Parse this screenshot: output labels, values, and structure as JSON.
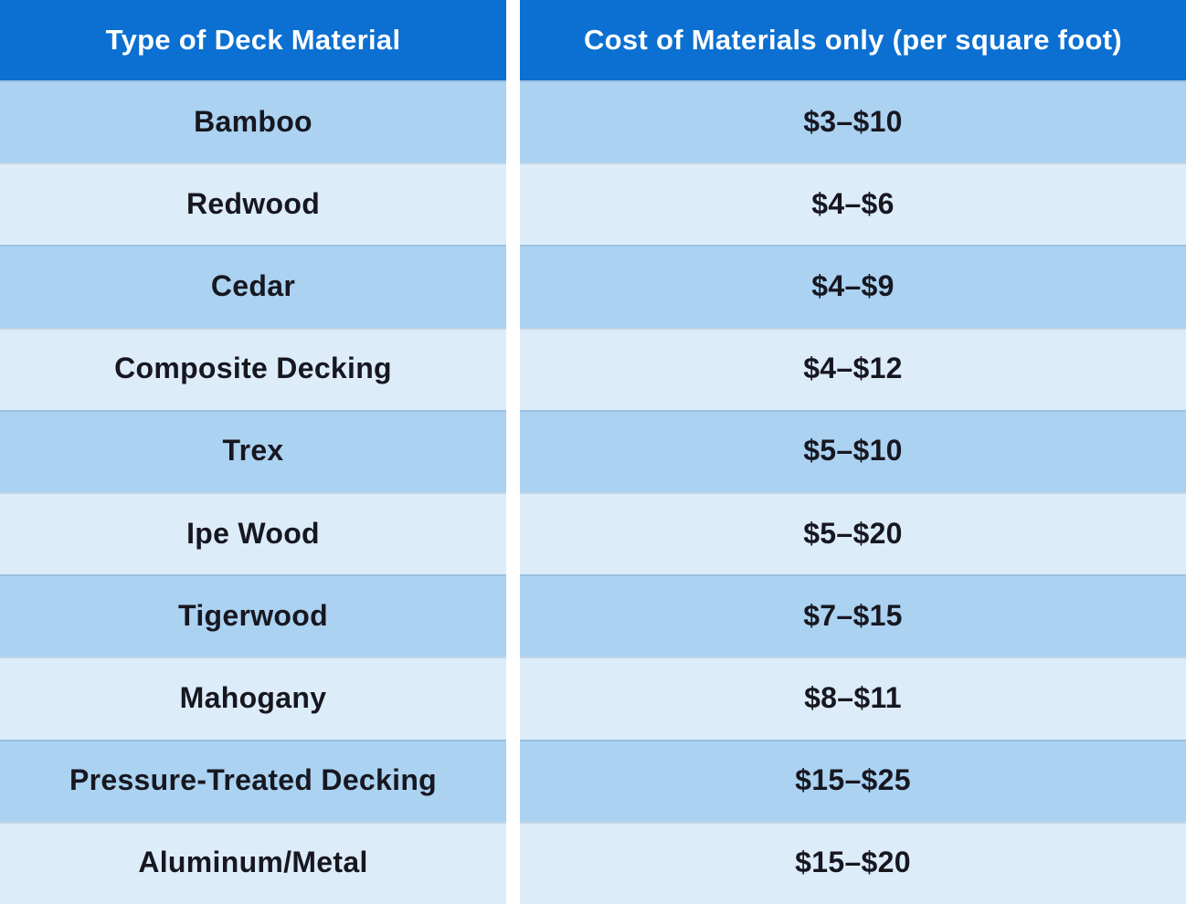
{
  "colors": {
    "header_bg": "#0b70d1",
    "header_text": "#ffffff",
    "row_alt_dark": "#abd2f1",
    "row_alt_light": "#ddecf9",
    "body_text": "#171720",
    "column_gap": "#ffffff"
  },
  "table": {
    "headers": {
      "material": "Type of Deck Material",
      "cost": "Cost of Materials only (per square foot)"
    },
    "rows": [
      {
        "material": "Bamboo",
        "cost": "$3–$10"
      },
      {
        "material": "Redwood",
        "cost": "$4–$6"
      },
      {
        "material": "Cedar",
        "cost": "$4–$9"
      },
      {
        "material": "Composite Decking",
        "cost": "$4–$12"
      },
      {
        "material": "Trex",
        "cost": "$5–$10"
      },
      {
        "material": "Ipe Wood",
        "cost": "$5–$20"
      },
      {
        "material": "Tigerwood",
        "cost": "$7–$15"
      },
      {
        "material": "Mahogany",
        "cost": "$8–$11"
      },
      {
        "material": "Pressure-Treated Decking",
        "cost": "$15–$25"
      },
      {
        "material": "Aluminum/Metal",
        "cost": "$15–$20"
      }
    ]
  },
  "chart_data": {
    "type": "table",
    "title": "",
    "columns": [
      "Type of Deck Material",
      "Cost of Materials only (per square foot)"
    ],
    "rows": [
      [
        "Bamboo",
        "$3–$10"
      ],
      [
        "Redwood",
        "$4–$6"
      ],
      [
        "Cedar",
        "$4–$9"
      ],
      [
        "Composite Decking",
        "$4–$12"
      ],
      [
        "Trex",
        "$5–$10"
      ],
      [
        "Ipe Wood",
        "$5–$20"
      ],
      [
        "Tigerwood",
        "$7–$15"
      ],
      [
        "Mahogany",
        "$8–$11"
      ],
      [
        "Pressure-Treated Decking",
        "$15–$25"
      ],
      [
        "Aluminum/Metal",
        "$15–$20"
      ]
    ],
    "cost_ranges_numeric": [
      {
        "material": "Bamboo",
        "min": 3,
        "max": 10
      },
      {
        "material": "Redwood",
        "min": 4,
        "max": 6
      },
      {
        "material": "Cedar",
        "min": 4,
        "max": 9
      },
      {
        "material": "Composite Decking",
        "min": 4,
        "max": 12
      },
      {
        "material": "Trex",
        "min": 5,
        "max": 10
      },
      {
        "material": "Ipe Wood",
        "min": 5,
        "max": 20
      },
      {
        "material": "Tigerwood",
        "min": 7,
        "max": 15
      },
      {
        "material": "Mahogany",
        "min": 8,
        "max": 11
      },
      {
        "material": "Pressure-Treated Decking",
        "min": 15,
        "max": 25
      },
      {
        "material": "Aluminum/Metal",
        "min": 15,
        "max": 20
      }
    ]
  }
}
